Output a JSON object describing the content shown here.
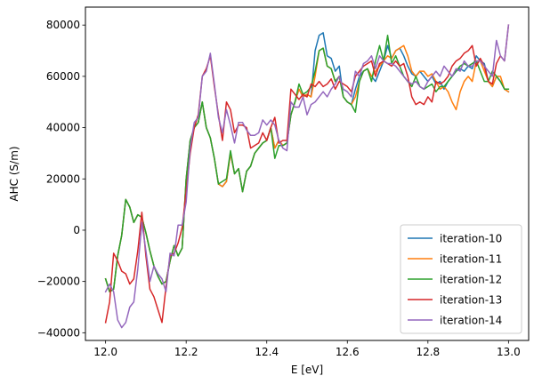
{
  "chart_data": {
    "type": "line",
    "title": "",
    "xlabel": "E [eV]",
    "ylabel": "AHC (S/m)",
    "xlim": [
      11.95,
      13.05
    ],
    "ylim": [
      -43000,
      87000
    ],
    "xticks": [
      12.0,
      12.2,
      12.4,
      12.6,
      12.8,
      13.0
    ],
    "xtick_labels": [
      "12.0",
      "12.2",
      "12.4",
      "12.6",
      "12.8",
      "13.0"
    ],
    "yticks": [
      -40000,
      -20000,
      0,
      20000,
      40000,
      60000,
      80000
    ],
    "ytick_labels": [
      "−40000",
      "−20000",
      "0",
      "20000",
      "40000",
      "60000",
      "80000"
    ],
    "grid": false,
    "legend_position": "bottom-right",
    "x_start": 12.0,
    "x_step": 0.01,
    "series": [
      {
        "name": "iteration-10",
        "color": "#1f77b4",
        "values": [
          -19000,
          -24000,
          -23000,
          -10000,
          -2000,
          12000,
          9000,
          3000,
          6000,
          5000,
          -1000,
          -8000,
          -14000,
          -18000,
          -21000,
          -20000,
          -12000,
          -6000,
          -10000,
          -7000,
          20000,
          35000,
          40000,
          42000,
          50000,
          40000,
          36000,
          28000,
          18000,
          17000,
          19000,
          30000,
          22000,
          24000,
          15000,
          23000,
          25000,
          30000,
          32000,
          34000,
          35000,
          40000,
          32000,
          35000,
          33000,
          34000,
          45000,
          50000,
          55000,
          52000,
          53000,
          52000,
          70000,
          76000,
          77000,
          68000,
          67000,
          62000,
          64000,
          52000,
          50000,
          49000,
          55000,
          60000,
          62000,
          63000,
          60000,
          58000,
          62000,
          66000,
          72000,
          67000,
          70000,
          71000,
          68000,
          64000,
          61000,
          60000,
          62000,
          60000,
          58000,
          60000,
          57000,
          58000,
          55000,
          58000,
          60000,
          62000,
          63000,
          62000,
          64000,
          63000,
          68000,
          66000,
          65000,
          58000,
          56000,
          60000,
          58000,
          55000,
          54000
        ]
      },
      {
        "name": "iteration-11",
        "color": "#ff7f0e",
        "values": [
          -19000,
          -24000,
          -23000,
          -10000,
          -2000,
          12000,
          9000,
          3000,
          6000,
          5000,
          -1000,
          -8000,
          -14000,
          -18000,
          -21000,
          -20000,
          -12000,
          -6000,
          -10000,
          -7000,
          20000,
          35000,
          40000,
          42000,
          50000,
          40000,
          36000,
          28000,
          18000,
          17000,
          19000,
          30000,
          22000,
          24000,
          15000,
          23000,
          25000,
          30000,
          32000,
          34000,
          35000,
          40000,
          32000,
          35000,
          33000,
          34000,
          45000,
          50000,
          55000,
          52000,
          53000,
          52000,
          60000,
          70000,
          71000,
          64000,
          63000,
          58000,
          60000,
          52000,
          50000,
          49000,
          52000,
          58000,
          62000,
          63000,
          60000,
          62000,
          64000,
          66000,
          68000,
          67000,
          70000,
          71000,
          72000,
          68000,
          62000,
          60000,
          62000,
          62000,
          60000,
          61000,
          58000,
          55000,
          56000,
          54000,
          50000,
          47000,
          54000,
          58000,
          60000,
          58000,
          66000,
          66000,
          62000,
          58000,
          56000,
          60000,
          60000,
          55000,
          54000
        ]
      },
      {
        "name": "iteration-12",
        "color": "#2ca02c",
        "values": [
          -19000,
          -24000,
          -23000,
          -10000,
          -2000,
          12000,
          9000,
          3000,
          6000,
          5000,
          -1000,
          -8000,
          -14000,
          -18000,
          -21000,
          -20000,
          -12000,
          -6000,
          -10000,
          -7000,
          20000,
          35000,
          40000,
          42000,
          50000,
          40000,
          36000,
          28000,
          18000,
          19000,
          20000,
          31000,
          22000,
          24000,
          15000,
          23000,
          25000,
          30000,
          32000,
          34000,
          35000,
          40000,
          28000,
          33000,
          33000,
          34000,
          45000,
          50000,
          57000,
          53000,
          54000,
          56000,
          62000,
          70000,
          71000,
          64000,
          63000,
          58000,
          60000,
          52000,
          50000,
          49000,
          46000,
          58000,
          62000,
          63000,
          58000,
          66000,
          72000,
          66000,
          76000,
          65000,
          68000,
          64000,
          60000,
          58000,
          56000,
          60000,
          56000,
          55000,
          56000,
          57000,
          54000,
          56000,
          56000,
          58000,
          60000,
          62000,
          64000,
          65000,
          64000,
          65000,
          66000,
          62000,
          58000,
          58000,
          62000,
          60000,
          58000,
          55000,
          55000
        ]
      },
      {
        "name": "iteration-13",
        "color": "#d62728",
        "values": [
          -36000,
          -28000,
          -9000,
          -12000,
          -16000,
          -17000,
          -21000,
          -19000,
          -8000,
          7000,
          -10000,
          -23000,
          -26000,
          -31000,
          -36000,
          -22000,
          -10000,
          -9000,
          -5000,
          1000,
          15000,
          30000,
          40000,
          45000,
          60000,
          63000,
          68000,
          56000,
          45000,
          35000,
          50000,
          47000,
          38000,
          41000,
          41000,
          40000,
          32000,
          33000,
          34000,
          38000,
          35000,
          40000,
          44000,
          34000,
          35000,
          35000,
          55000,
          53000,
          51000,
          53000,
          52000,
          57000,
          56000,
          58000,
          56000,
          57000,
          59000,
          55000,
          58000,
          57000,
          56000,
          54000,
          60000,
          62000,
          64000,
          65000,
          66000,
          60000,
          65000,
          66000,
          65000,
          64000,
          66000,
          64000,
          65000,
          60000,
          52000,
          49000,
          50000,
          49000,
          52000,
          50000,
          58000,
          57000,
          58000,
          60000,
          64000,
          66000,
          67000,
          69000,
          70000,
          72000,
          64000,
          67000,
          64000,
          58000,
          57000,
          65000,
          68000,
          66000,
          80000
        ]
      },
      {
        "name": "iteration-14",
        "color": "#9467bd",
        "values": [
          -24000,
          -21000,
          -24000,
          -35000,
          -38000,
          -36000,
          -30000,
          -28000,
          -15000,
          3000,
          -8000,
          -20000,
          -14000,
          -17000,
          -19000,
          -24000,
          -9000,
          -10000,
          2000,
          2000,
          11000,
          32000,
          42000,
          44000,
          60000,
          62000,
          69000,
          57000,
          44000,
          38000,
          47000,
          41000,
          34000,
          42000,
          42000,
          39000,
          37000,
          37000,
          38000,
          43000,
          41000,
          43000,
          41000,
          35000,
          32000,
          31000,
          50000,
          48000,
          48000,
          52000,
          45000,
          49000,
          50000,
          52000,
          54000,
          52000,
          55000,
          57000,
          60000,
          55000,
          54000,
          52000,
          62000,
          60000,
          65000,
          66000,
          68000,
          63000,
          68000,
          66000,
          65000,
          65000,
          64000,
          62000,
          60000,
          58000,
          57000,
          58000,
          56000,
          55000,
          58000,
          60000,
          62000,
          60000,
          64000,
          62000,
          60000,
          63000,
          62000,
          66000,
          64000,
          64000,
          66000,
          66000,
          64000,
          62000,
          60000,
          74000,
          68000,
          66000,
          80000
        ]
      }
    ]
  }
}
